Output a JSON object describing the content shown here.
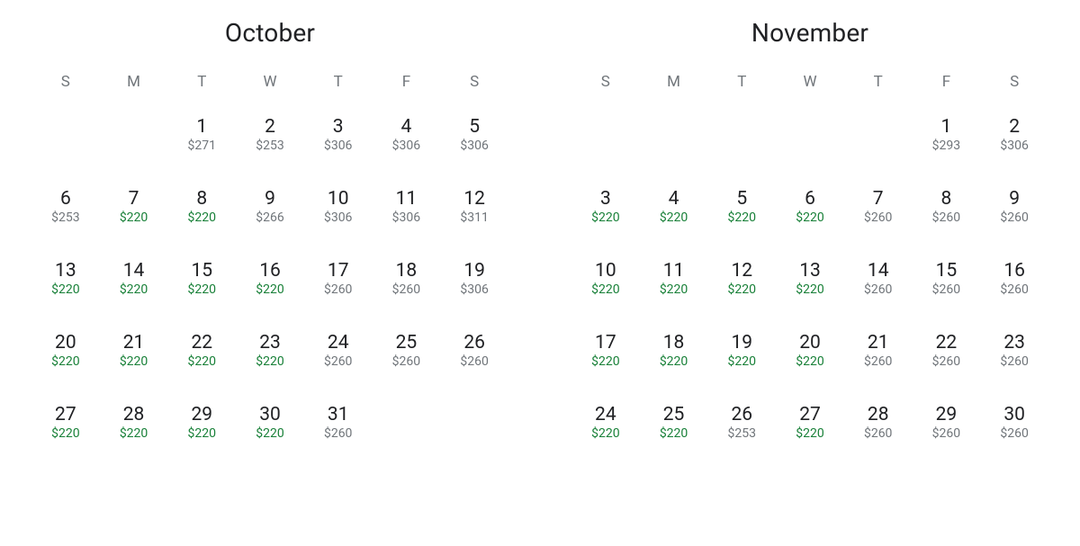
{
  "colors": {
    "background": "#ffffff",
    "text_primary": "#202124",
    "text_secondary": "#70757a",
    "price_low": "#188038",
    "price_normal": "#70757a"
  },
  "typography": {
    "month_title_fontsize": 28,
    "weekday_fontsize": 17,
    "day_num_fontsize": 21,
    "price_fontsize": 14
  },
  "weekday_labels": [
    "S",
    "M",
    "T",
    "W",
    "T",
    "F",
    "S"
  ],
  "low_price_threshold": 220,
  "months": [
    {
      "title": "October",
      "leading_blanks": 2,
      "days": [
        {
          "n": 1,
          "p": 271
        },
        {
          "n": 2,
          "p": 253
        },
        {
          "n": 3,
          "p": 306
        },
        {
          "n": 4,
          "p": 306
        },
        {
          "n": 5,
          "p": 306
        },
        {
          "n": 6,
          "p": 253
        },
        {
          "n": 7,
          "p": 220
        },
        {
          "n": 8,
          "p": 220
        },
        {
          "n": 9,
          "p": 266
        },
        {
          "n": 10,
          "p": 306
        },
        {
          "n": 11,
          "p": 306
        },
        {
          "n": 12,
          "p": 311
        },
        {
          "n": 13,
          "p": 220
        },
        {
          "n": 14,
          "p": 220
        },
        {
          "n": 15,
          "p": 220
        },
        {
          "n": 16,
          "p": 220
        },
        {
          "n": 17,
          "p": 260
        },
        {
          "n": 18,
          "p": 260
        },
        {
          "n": 19,
          "p": 306
        },
        {
          "n": 20,
          "p": 220
        },
        {
          "n": 21,
          "p": 220
        },
        {
          "n": 22,
          "p": 220
        },
        {
          "n": 23,
          "p": 220
        },
        {
          "n": 24,
          "p": 260
        },
        {
          "n": 25,
          "p": 260
        },
        {
          "n": 26,
          "p": 260
        },
        {
          "n": 27,
          "p": 220
        },
        {
          "n": 28,
          "p": 220
        },
        {
          "n": 29,
          "p": 220
        },
        {
          "n": 30,
          "p": 220
        },
        {
          "n": 31,
          "p": 260
        }
      ]
    },
    {
      "title": "November",
      "leading_blanks": 5,
      "days": [
        {
          "n": 1,
          "p": 293
        },
        {
          "n": 2,
          "p": 306
        },
        {
          "n": 3,
          "p": 220
        },
        {
          "n": 4,
          "p": 220
        },
        {
          "n": 5,
          "p": 220
        },
        {
          "n": 6,
          "p": 220
        },
        {
          "n": 7,
          "p": 260
        },
        {
          "n": 8,
          "p": 260
        },
        {
          "n": 9,
          "p": 260
        },
        {
          "n": 10,
          "p": 220
        },
        {
          "n": 11,
          "p": 220
        },
        {
          "n": 12,
          "p": 220
        },
        {
          "n": 13,
          "p": 220
        },
        {
          "n": 14,
          "p": 260
        },
        {
          "n": 15,
          "p": 260
        },
        {
          "n": 16,
          "p": 260
        },
        {
          "n": 17,
          "p": 220
        },
        {
          "n": 18,
          "p": 220
        },
        {
          "n": 19,
          "p": 220
        },
        {
          "n": 20,
          "p": 220
        },
        {
          "n": 21,
          "p": 260
        },
        {
          "n": 22,
          "p": 260
        },
        {
          "n": 23,
          "p": 260
        },
        {
          "n": 24,
          "p": 220
        },
        {
          "n": 25,
          "p": 220
        },
        {
          "n": 26,
          "p": 253
        },
        {
          "n": 27,
          "p": 220
        },
        {
          "n": 28,
          "p": 260
        },
        {
          "n": 29,
          "p": 260
        },
        {
          "n": 30,
          "p": 260
        }
      ]
    }
  ]
}
